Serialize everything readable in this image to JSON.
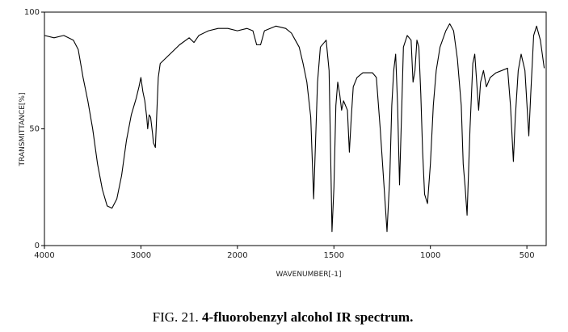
{
  "chart_data": {
    "type": "line",
    "caption_label": "FIG. 21.",
    "title": "4-fluorobenzyl alcohol IR spectrum.",
    "xlabel": "WAVENUMBER[-1]",
    "ylabel": "TRANSMITTANCE[%]",
    "xlim": [
      4000,
      400
    ],
    "x_break": 2000,
    "x_break_ratio": 2,
    "xticks": [
      4000,
      3000,
      2000,
      1500,
      1000,
      500
    ],
    "ylim": [
      0,
      100
    ],
    "yticks": [
      0,
      50,
      100
    ],
    "x": [
      4000,
      3900,
      3800,
      3700,
      3650,
      3600,
      3550,
      3500,
      3450,
      3400,
      3350,
      3300,
      3250,
      3200,
      3150,
      3100,
      3050,
      3020,
      3000,
      2980,
      2960,
      2940,
      2930,
      2915,
      2900,
      2880,
      2870,
      2850,
      2840,
      2820,
      2800,
      2700,
      2600,
      2500,
      2450,
      2400,
      2300,
      2200,
      2100,
      2000,
      1950,
      1920,
      1900,
      1880,
      1860,
      1800,
      1750,
      1720,
      1700,
      1680,
      1660,
      1640,
      1620,
      1605,
      1595,
      1585,
      1570,
      1540,
      1525,
      1515,
      1510,
      1500,
      1490,
      1480,
      1470,
      1460,
      1450,
      1430,
      1420,
      1410,
      1400,
      1380,
      1350,
      1300,
      1280,
      1260,
      1240,
      1225,
      1210,
      1200,
      1190,
      1180,
      1170,
      1160,
      1150,
      1140,
      1120,
      1100,
      1090,
      1080,
      1070,
      1060,
      1050,
      1040,
      1030,
      1015,
      1000,
      985,
      970,
      950,
      920,
      900,
      880,
      860,
      840,
      830,
      820,
      810,
      795,
      780,
      770,
      760,
      750,
      740,
      725,
      710,
      690,
      660,
      630,
      600,
      585,
      570,
      560,
      545,
      530,
      510,
      490,
      480,
      465,
      450,
      430,
      410
    ],
    "series": [
      {
        "color": "#000000",
        "values": [
          90,
          89,
          90,
          88,
          84,
          72,
          62,
          50,
          35,
          24,
          17,
          16,
          20,
          30,
          45,
          56,
          63,
          68,
          72,
          66,
          62,
          55,
          50,
          56,
          55,
          48,
          44,
          42,
          52,
          72,
          78,
          82,
          86,
          89,
          87,
          90,
          92,
          93,
          93,
          92,
          93,
          92,
          86,
          86,
          92,
          94,
          93,
          91,
          88,
          85,
          78,
          70,
          55,
          20,
          45,
          70,
          85,
          88,
          75,
          30,
          6,
          25,
          60,
          70,
          65,
          58,
          62,
          58,
          40,
          55,
          68,
          72,
          74,
          74,
          72,
          50,
          25,
          6,
          30,
          60,
          75,
          82,
          60,
          26,
          55,
          85,
          90,
          88,
          70,
          75,
          88,
          85,
          65,
          40,
          22,
          18,
          35,
          60,
          75,
          85,
          92,
          95,
          92,
          80,
          60,
          35,
          25,
          13,
          50,
          78,
          82,
          70,
          58,
          70,
          75,
          68,
          72,
          74,
          75,
          76,
          60,
          36,
          55,
          75,
          82,
          75,
          47,
          65,
          90,
          94,
          88,
          76
        ]
      }
    ]
  }
}
